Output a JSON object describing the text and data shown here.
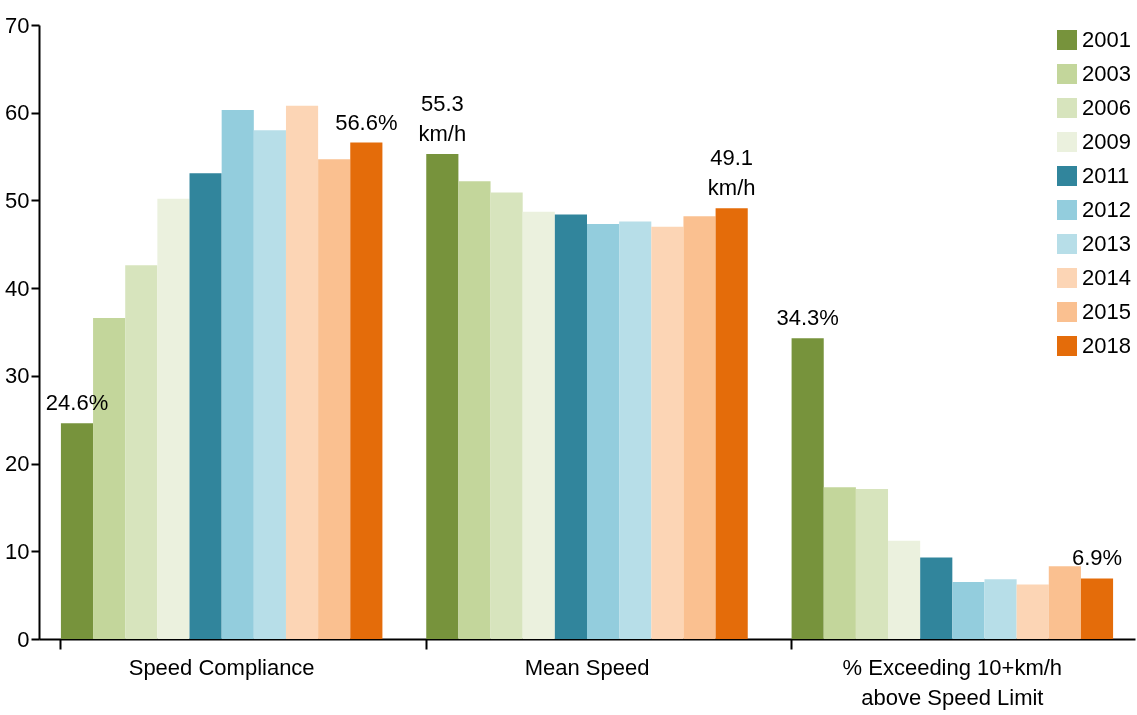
{
  "chart_data": {
    "type": "bar",
    "categories": [
      "Speed Compliance",
      "Mean Speed",
      "% Exceeding 10+km/h above Speed Limit"
    ],
    "ylim": [
      0,
      70
    ],
    "yticks": [
      0,
      10,
      20,
      30,
      40,
      50,
      60,
      70
    ],
    "grid": false,
    "legend": "top right",
    "series": [
      {
        "name": "2001",
        "color": "#77933c",
        "values": [
          24.6,
          55.3,
          34.3
        ],
        "value_labels": [
          "24.6%",
          "55.3 km/h",
          "34.3%"
        ]
      },
      {
        "name": "2003",
        "color": "#c3d69b",
        "values": [
          36.6,
          52.2,
          17.3
        ]
      },
      {
        "name": "2006",
        "color": "#d7e4bd",
        "values": [
          42.6,
          50.9,
          17.1
        ]
      },
      {
        "name": "2009",
        "color": "#ebf1de",
        "values": [
          50.2,
          48.7,
          11.2
        ]
      },
      {
        "name": "2011",
        "color": "#31859c",
        "values": [
          53.1,
          48.4,
          9.3
        ]
      },
      {
        "name": "2012",
        "color": "#93cddd",
        "values": [
          60.3,
          47.3,
          6.5
        ]
      },
      {
        "name": "2013",
        "color": "#b7dee8",
        "values": [
          58.0,
          47.6,
          6.8
        ]
      },
      {
        "name": "2014",
        "color": "#fcd5b5",
        "values": [
          60.8,
          47.0,
          6.2
        ]
      },
      {
        "name": "2015",
        "color": "#fac090",
        "values": [
          54.7,
          48.2,
          8.3
        ]
      },
      {
        "name": "2018",
        "color": "#e46c0a",
        "values": [
          56.6,
          49.1,
          6.9
        ],
        "value_labels": [
          "56.6%",
          "49.1 km/h",
          "6.9%"
        ]
      }
    ]
  }
}
